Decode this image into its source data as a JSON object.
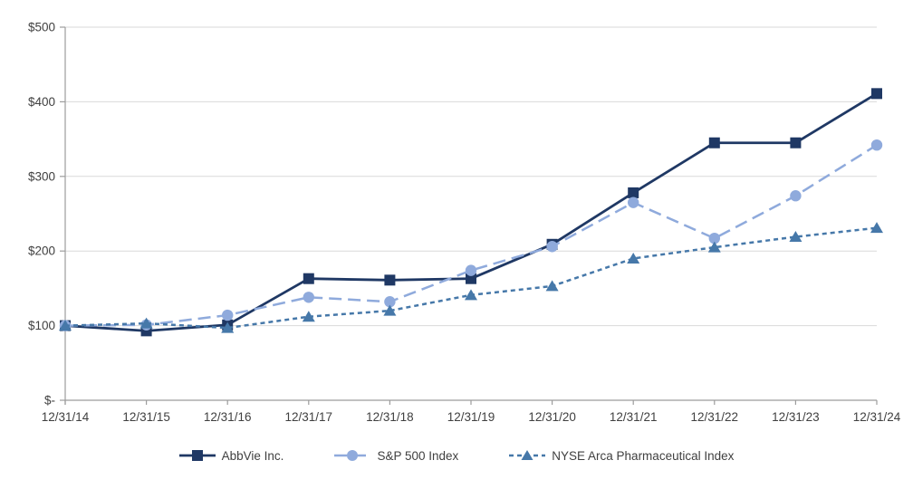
{
  "chart_data": {
    "type": "line",
    "title": "",
    "xlabel": "",
    "ylabel": "",
    "categories": [
      "12/31/14",
      "12/31/15",
      "12/31/16",
      "12/31/17",
      "12/31/18",
      "12/31/19",
      "12/31/20",
      "12/31/21",
      "12/31/22",
      "12/31/23",
      "12/31/24"
    ],
    "series": [
      {
        "name": "AbbVie Inc.",
        "values": [
          100,
          93,
          101,
          163,
          161,
          163,
          209,
          278,
          345,
          345,
          411
        ],
        "color": "#1F3864",
        "marker": "square",
        "line_style": "solid",
        "line_width": 2.8
      },
      {
        "name": "S&P 500 Index",
        "values": [
          100,
          101,
          114,
          138,
          132,
          174,
          206,
          265,
          217,
          274,
          342
        ],
        "color": "#8FAADC",
        "marker": "circle",
        "line_style": "long-dash",
        "line_width": 2.5
      },
      {
        "name": "NYSE Arca Pharmaceutical Index",
        "values": [
          100,
          103,
          97,
          112,
          120,
          141,
          153,
          190,
          205,
          219,
          231
        ],
        "color": "#4678A9",
        "marker": "triangle",
        "line_style": "short-dash",
        "line_width": 2.5
      }
    ],
    "ylim": [
      0,
      500
    ],
    "y_ticks": [
      {
        "value": 500,
        "label": "$500"
      },
      {
        "value": 400,
        "label": "$400"
      },
      {
        "value": 300,
        "label": "$300"
      },
      {
        "value": 200,
        "label": "$200"
      },
      {
        "value": 100,
        "label": "$100"
      },
      {
        "value": 0,
        "label": "$-"
      }
    ],
    "grid": "horizontal",
    "legend_position": "bottom",
    "colors": {
      "gridline": "#D9D9D9",
      "axis": "#9C9C9C",
      "label": "#404040"
    }
  }
}
